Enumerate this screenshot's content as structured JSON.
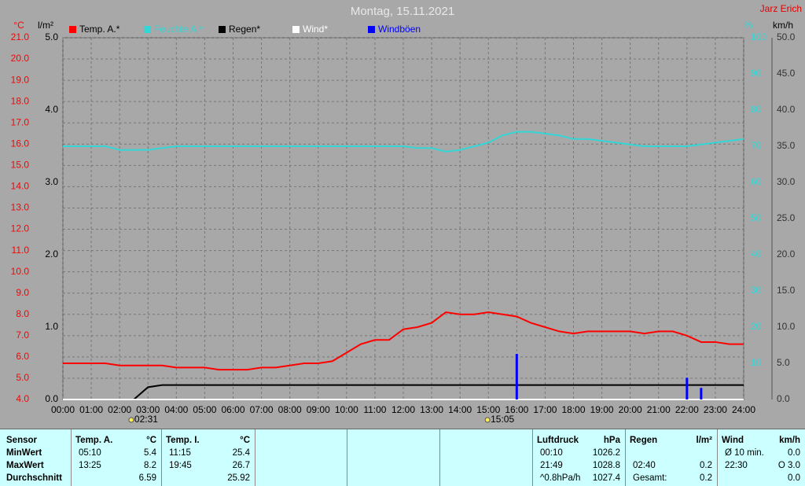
{
  "header": {
    "title": "Montag, 15.11.2021",
    "author": "Jarz Erich"
  },
  "chart_data": {
    "type": "line",
    "ylabel": "°C",
    "y2label": "l/m²",
    "y3label": "%",
    "y4label": "km/h",
    "x": [
      0,
      0.5,
      1,
      1.5,
      2,
      2.5,
      3,
      3.5,
      4,
      4.5,
      5,
      5.5,
      6,
      6.5,
      7,
      7.5,
      8,
      8.5,
      9,
      9.5,
      10,
      10.5,
      11,
      11.5,
      12,
      12.5,
      13,
      13.5,
      14,
      14.5,
      15,
      15.5,
      16,
      16.5,
      17,
      17.5,
      18,
      18.5,
      19,
      19.5,
      20,
      20.5,
      21,
      21.5,
      22,
      22.5,
      23,
      23.5,
      24
    ],
    "xlim": [
      0,
      24
    ],
    "xticks": [
      {
        "value": 0,
        "label": "00:00"
      },
      {
        "value": 1,
        "label": "01:00"
      },
      {
        "value": 2,
        "label": "02:00"
      },
      {
        "value": 3,
        "label": "03:00"
      },
      {
        "value": 4,
        "label": "04:00"
      },
      {
        "value": 5,
        "label": "05:00"
      },
      {
        "value": 6,
        "label": "06:00"
      },
      {
        "value": 7,
        "label": "07:00"
      },
      {
        "value": 8,
        "label": "08:00"
      },
      {
        "value": 9,
        "label": "09:00"
      },
      {
        "value": 10,
        "label": "10:00"
      },
      {
        "value": 11,
        "label": "11:00"
      },
      {
        "value": 12,
        "label": "12:00"
      },
      {
        "value": 13,
        "label": "13:00"
      },
      {
        "value": 14,
        "label": "14:00"
      },
      {
        "value": 15,
        "label": "15:00"
      },
      {
        "value": 16,
        "label": "16:00"
      },
      {
        "value": 17,
        "label": "17:00"
      },
      {
        "value": 18,
        "label": "18:00"
      },
      {
        "value": 19,
        "label": "19:00"
      },
      {
        "value": 20,
        "label": "20:00"
      },
      {
        "value": 21,
        "label": "21:00"
      },
      {
        "value": 22,
        "label": "22:00"
      },
      {
        "value": 23,
        "label": "23:00"
      },
      {
        "value": 24,
        "label": "24:00"
      }
    ],
    "ylim": [
      4,
      21
    ],
    "yticks": [
      {
        "value": 4,
        "label": "4.0"
      },
      {
        "value": 5,
        "label": "5.0"
      },
      {
        "value": 6,
        "label": "6.0"
      },
      {
        "value": 7,
        "label": "7.0"
      },
      {
        "value": 8,
        "label": "8.0"
      },
      {
        "value": 9,
        "label": "9.0"
      },
      {
        "value": 10,
        "label": "10.0"
      },
      {
        "value": 11,
        "label": "11.0"
      },
      {
        "value": 12,
        "label": "12.0"
      },
      {
        "value": 13,
        "label": "13.0"
      },
      {
        "value": 14,
        "label": "14.0"
      },
      {
        "value": 15,
        "label": "15.0"
      },
      {
        "value": 16,
        "label": "16.0"
      },
      {
        "value": 17,
        "label": "17.0"
      },
      {
        "value": 18,
        "label": "18.0"
      },
      {
        "value": 19,
        "label": "19.0"
      },
      {
        "value": 20,
        "label": "20.0"
      },
      {
        "value": 21,
        "label": "21.0"
      }
    ],
    "y2lim": [
      0,
      5
    ],
    "y2ticks": [
      {
        "value": 0,
        "label": "0.0"
      },
      {
        "value": 1,
        "label": "1.0"
      },
      {
        "value": 2,
        "label": "2.0"
      },
      {
        "value": 3,
        "label": "3.0"
      },
      {
        "value": 4,
        "label": "4.0"
      },
      {
        "value": 5,
        "label": "5.0"
      }
    ],
    "y3lim": [
      0,
      100
    ],
    "y3ticks": [
      10,
      20,
      30,
      40,
      50,
      60,
      70,
      80,
      90,
      100
    ],
    "y4lim": [
      0,
      50
    ],
    "y4ticks": [
      {
        "value": 0,
        "label": "0.0"
      },
      {
        "value": 5,
        "label": "5.0"
      },
      {
        "value": 10,
        "label": "10.0"
      },
      {
        "value": 15,
        "label": "15.0"
      },
      {
        "value": 20,
        "label": "20.0"
      },
      {
        "value": 25,
        "label": "25.0"
      },
      {
        "value": 30,
        "label": "30.0"
      },
      {
        "value": 35,
        "label": "35.0"
      },
      {
        "value": 40,
        "label": "40.0"
      },
      {
        "value": 45,
        "label": "45.0"
      },
      {
        "value": 50,
        "label": "50.0"
      }
    ],
    "grid": true,
    "series": [
      {
        "name": "Temp. A.*",
        "color": "#ff0000",
        "axis": "y",
        "style": "line",
        "values": [
          5.7,
          5.7,
          5.7,
          5.7,
          5.6,
          5.6,
          5.6,
          5.6,
          5.5,
          5.5,
          5.5,
          5.4,
          5.4,
          5.4,
          5.5,
          5.5,
          5.6,
          5.7,
          5.7,
          5.8,
          6.2,
          6.6,
          6.8,
          6.8,
          7.3,
          7.4,
          7.6,
          8.1,
          8.0,
          8.0,
          8.1,
          8.0,
          7.9,
          7.6,
          7.4,
          7.2,
          7.1,
          7.2,
          7.2,
          7.2,
          7.2,
          7.1,
          7.2,
          7.2,
          7.0,
          6.7,
          6.7,
          6.6,
          6.6
        ]
      },
      {
        "name": "Feuchte A.*",
        "color": "#33d6d6",
        "axis": "y3",
        "style": "line",
        "values": [
          70,
          70,
          70,
          70,
          69,
          69,
          69,
          69.5,
          70,
          70,
          70,
          70,
          70,
          70,
          70,
          70,
          70,
          70,
          70,
          70,
          70,
          70,
          70,
          70,
          70,
          69.5,
          69.5,
          68.5,
          69,
          70,
          71,
          73,
          74,
          74,
          73.5,
          73,
          72,
          72,
          71.5,
          71,
          70.5,
          70,
          70,
          70,
          70,
          70.5,
          71,
          71.5,
          72
        ]
      },
      {
        "name": "Regen*",
        "color": "#000000",
        "axis": "y2",
        "style": "line",
        "values": [
          0,
          0,
          0,
          0,
          0,
          0,
          0.17,
          0.2,
          0.2,
          0.2,
          0.2,
          0.2,
          0.2,
          0.2,
          0.2,
          0.2,
          0.2,
          0.2,
          0.2,
          0.2,
          0.2,
          0.2,
          0.2,
          0.2,
          0.2,
          0.2,
          0.2,
          0.2,
          0.2,
          0.2,
          0.2,
          0.2,
          0.2,
          0.2,
          0.2,
          0.2,
          0.2,
          0.2,
          0.2,
          0.2,
          0.2,
          0.2,
          0.2,
          0.2,
          0.2,
          0.2,
          0.2,
          0.2,
          0.2
        ]
      },
      {
        "name": "Wind*",
        "color": "#ffffff",
        "axis": "y4",
        "style": "line",
        "values": [
          0,
          0,
          0,
          0,
          0,
          0,
          0,
          0,
          0,
          0,
          0,
          0,
          0,
          0,
          0,
          0,
          0,
          0,
          0,
          0,
          0,
          0,
          0,
          0,
          0,
          0,
          0,
          0,
          0,
          0,
          0,
          0,
          0,
          0,
          0,
          0,
          0,
          0,
          0,
          0,
          0,
          0,
          0,
          0,
          0,
          0,
          0,
          0,
          0
        ]
      },
      {
        "name": "Windböen",
        "color": "#0000ff",
        "axis": "y4",
        "style": "bar",
        "values": [
          0,
          0,
          0,
          0,
          0,
          0,
          0,
          0,
          0,
          0,
          0,
          0,
          0,
          0,
          0,
          0,
          0,
          0,
          0,
          0,
          0,
          0,
          0,
          0,
          0,
          0,
          0,
          0,
          0,
          0,
          0,
          0,
          6.3,
          0,
          0,
          0,
          0,
          0,
          0,
          0,
          0,
          0,
          0,
          0,
          3.0,
          1.6,
          0,
          0,
          0
        ]
      }
    ],
    "events": [
      {
        "x": 2.52,
        "label": "02:31"
      },
      {
        "x": 15.08,
        "label": "15:05"
      }
    ]
  },
  "table": {
    "header_label": "Sensor",
    "row_labels": [
      "MinWert",
      "MaxWert",
      "Durchschnitt"
    ],
    "sections": [
      {
        "name": "Temp. A.",
        "unit": "°C",
        "rows": [
          {
            "time": "05:10",
            "value": "5.4"
          },
          {
            "time": "13:25",
            "value": "8.2"
          },
          {
            "value": "6.59"
          }
        ]
      },
      {
        "name": "Temp. I.",
        "unit": "°C",
        "rows": [
          {
            "time": "11:15",
            "value": "25.4"
          },
          {
            "time": "19:45",
            "value": "26.7"
          },
          {
            "value": "25.92"
          }
        ]
      },
      {
        "name": "Luftdruck",
        "unit": "hPa",
        "rows": [
          {
            "time": "00:10",
            "value": "1026.2"
          },
          {
            "time": "21:49",
            "value": "1028.8"
          },
          {
            "time": "^0.8hPa/h",
            "value": "1027.4"
          }
        ]
      },
      {
        "name": "Regen",
        "unit": "l/m²",
        "rows": [
          null,
          {
            "time": "02:40",
            "value": "0.2"
          },
          {
            "time": "Gesamt:",
            "value": "0.2"
          }
        ]
      },
      {
        "name": "Wind",
        "unit": "km/h",
        "rows": [
          {
            "time": "Ø 10 min.",
            "value": "0.0"
          },
          {
            "time": "22:30",
            "value": "O 3.0"
          },
          {
            "value": "0.0"
          }
        ]
      }
    ]
  }
}
